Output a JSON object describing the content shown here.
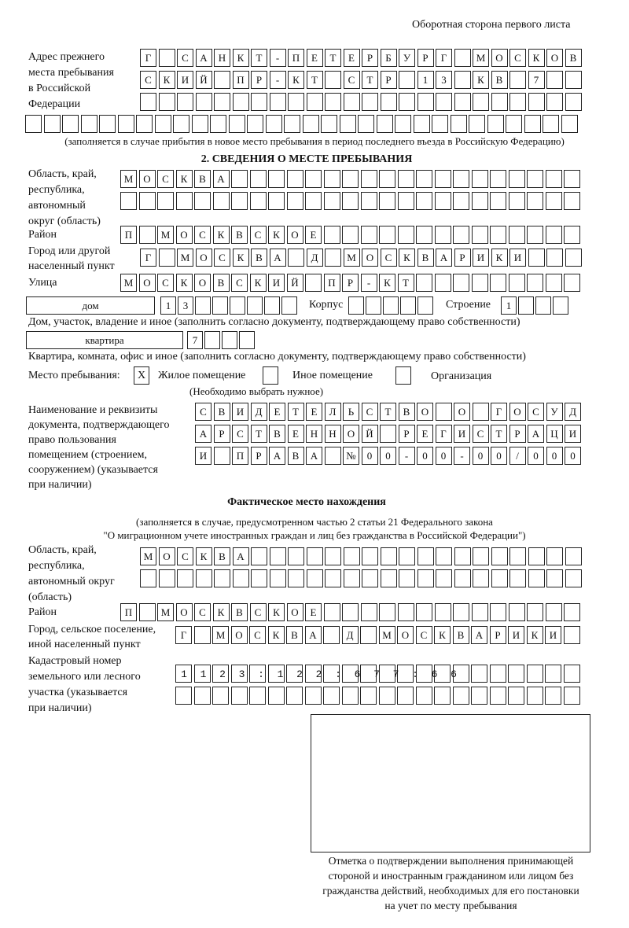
{
  "header": {
    "page_side": "Оборотная сторона первого листа"
  },
  "previous_address": {
    "label": [
      "Адрес прежнего",
      "места пребывания",
      "в Российской",
      "Федерации"
    ],
    "rows": [
      "Г САНКТ-ПЕТЕРБУРГ МОСКОВ",
      "СКИЙ ПР-КТ СТР 13 КВ 7  ",
      "                        ",
      "                              "
    ],
    "note": "(заполняется в случае прибытия в новое место пребывания в период последнего въезда в Российскую Федерацию)"
  },
  "section2": {
    "title": "2. СВЕДЕНИЯ О МЕСТЕ ПРЕБЫВАНИЯ",
    "region_label": [
      "Область, край,",
      "республика,",
      "автономный",
      "округ (область)"
    ],
    "region_rows": [
      "МОСКВА                   ",
      "                         "
    ],
    "district_label": "Район",
    "district_row": "П МОСКВСКОЕ              ",
    "city_label": [
      "Город или другой",
      "населенный пункт"
    ],
    "city_row": "Г МОСКВА Д МОСКВАРИКИ   ",
    "street_label": "Улица",
    "street_row": "МОСКОВСКИЙ ПР-КТ         ",
    "house_type": "дом",
    "house_cells": "13      ",
    "building_label": "Корпус",
    "building_cells": "     ",
    "structure_label": "Строение",
    "structure_cells": "1   ",
    "house_note": "Дом, участок, владение и иное (заполнить согласно документу, подтверждающему право собственности)",
    "apartment_type": "квартира",
    "apartment_cells": "7   ",
    "apartment_note": "Квартира, комната, офис и иное (заполнить согласно документу, подтверждающему право собственности)",
    "stay_place_label": "Место пребывания:",
    "stay_options": [
      {
        "label": "Жилое помещение",
        "mark": "X"
      },
      {
        "label": "Иное помещение",
        "mark": ""
      },
      {
        "label": "Организация",
        "mark": ""
      }
    ],
    "stay_note": "(Необходимо выбрать нужное)",
    "document_label": [
      "Наименование и реквизиты",
      "документа, подтверждающего",
      "право пользования",
      "помещением (строением,",
      "сооружением) (указывается",
      "при наличии)"
    ],
    "document_rows": [
      "СВИДЕТЕЛЬСТВО О ГОСУД",
      "АРСТВЕННОЙ РЕГИСТРАЦИ",
      "И ПРАВА №00-00-00/000"
    ]
  },
  "actual_location": {
    "title": "Фактическое место нахождения",
    "note": [
      "(заполняется в случае, предусмотренном частью 2 статьи 21 Федерального закона",
      "\"О миграционном учете иностранных граждан и лиц без гражданства в Российской Федерации\")"
    ],
    "region_label": [
      "Область, край,",
      "республика,",
      "автономный округ",
      "(область)"
    ],
    "region_rows": [
      "МОСКВА                  ",
      "                        "
    ],
    "district_label": "Район",
    "district_row": "П МОСКВСКОЕ              ",
    "city_label": [
      "Город, сельское поселение,",
      "иной населенный пункт"
    ],
    "city_row": "Г МОСКВА Д МОСКВАРИКИ ",
    "cadastral_label": [
      "Кадастровый номер",
      "земельного или лесного",
      "участка (указывается",
      "при наличии)"
    ],
    "cadastral_rows": [
      "1123:122:677:66       ",
      "                      "
    ]
  },
  "stamp_caption": [
    "Отметка о подтверждении выполнения принимающей",
    "стороной и иностранным гражданином или лицом без",
    "гражданства действий, необходимых для его постановки",
    "на учет по месту пребывания"
  ]
}
